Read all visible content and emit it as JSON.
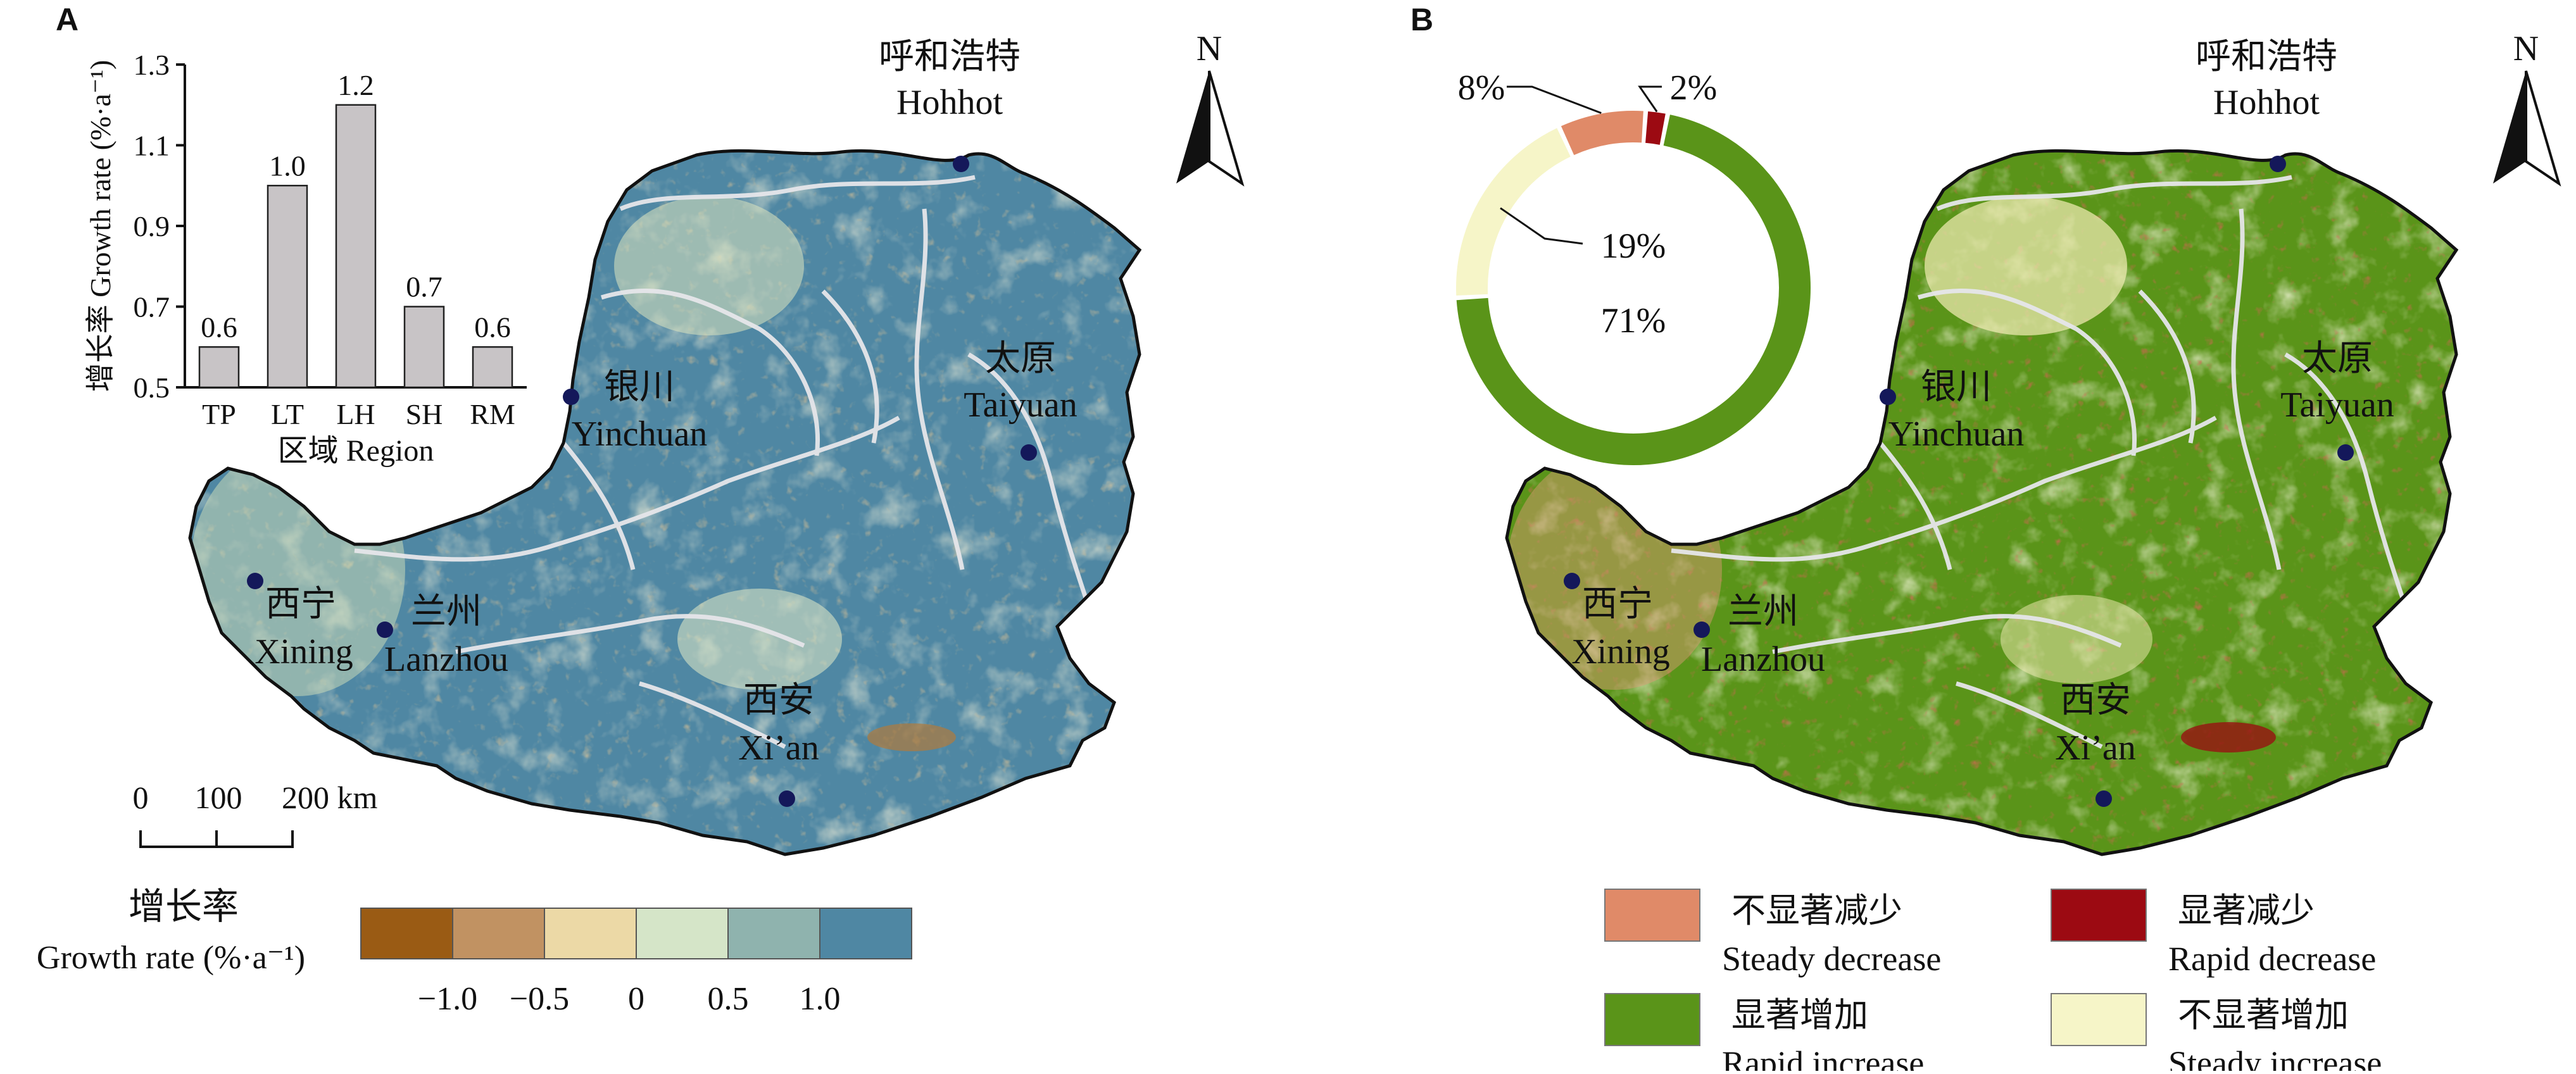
{
  "panel_a": {
    "label": "A",
    "cities": [
      {
        "name_cn": "呼和浩特",
        "name_en": "Hohhot"
      },
      {
        "name_cn": "银川",
        "name_en": "Yinchuan"
      },
      {
        "name_cn": "太原",
        "name_en": "Taiyuan"
      },
      {
        "name_cn": "西宁",
        "name_en": "Xining"
      },
      {
        "name_cn": "兰州",
        "name_en": "Lanzhou"
      },
      {
        "name_cn": "西安",
        "name_en": "Xi’an"
      }
    ],
    "north_label": "N",
    "scale_bar": {
      "ticks": [
        "0",
        "100",
        "200 km"
      ]
    },
    "legend": {
      "title_cn": "增长率",
      "title_en": "Growth rate (%·a⁻¹)",
      "colors": [
        "#9a5b14",
        "#c19262",
        "#ecd9a6",
        "#d5e5c8",
        "#8fb3ae",
        "#4f87a3"
      ],
      "tick_labels": [
        "−1.0",
        "−0.5",
        "0",
        "0.5",
        "1.0"
      ]
    }
  },
  "panel_b": {
    "label": "B",
    "cities": [
      {
        "name_cn": "呼和浩特",
        "name_en": "Hohhot"
      },
      {
        "name_cn": "银川",
        "name_en": "Yinchuan"
      },
      {
        "name_cn": "太原",
        "name_en": "Taiyuan"
      },
      {
        "name_cn": "西宁",
        "name_en": "Xining"
      },
      {
        "name_cn": "兰州",
        "name_en": "Lanzhou"
      },
      {
        "name_cn": "西安",
        "name_en": "Xi’an"
      }
    ],
    "north_label": "N",
    "legend": [
      {
        "cn": "不显著减少",
        "en": "Steady decrease",
        "color": "#e08a68"
      },
      {
        "cn": "显著减少",
        "en": "Rapid decrease",
        "color": "#9c0a12"
      },
      {
        "cn": "显著增加",
        "en": "Rapid increase",
        "color": "#5a9419"
      },
      {
        "cn": "不显著增加",
        "en": "Steady increase",
        "color": "#f6f5c8"
      }
    ]
  },
  "chart_data": [
    {
      "type": "bar",
      "title": "",
      "xlabel": "区域 Region",
      "ylabel": "增长率 Growth rate (%·a⁻¹)",
      "categories": [
        "TP",
        "LT",
        "LH",
        "SH",
        "RM"
      ],
      "values": [
        0.6,
        1.0,
        1.2,
        0.7,
        0.6
      ],
      "value_labels": [
        "0.6",
        "1.0",
        "1.2",
        "0.7",
        "0.6"
      ],
      "ylim": [
        0.5,
        1.3
      ],
      "yticks": [
        "0.5",
        "0.7",
        "0.9",
        "1.1",
        "1.3"
      ],
      "bar_color": "#c8c4c6"
    },
    {
      "type": "pie",
      "donut": true,
      "labels": [
        "Steady decrease",
        "Rapid decrease",
        "Rapid increase",
        "Steady increase"
      ],
      "values": [
        8,
        2,
        71,
        19
      ],
      "value_labels": [
        "8%",
        "2%",
        "71%",
        "19%"
      ],
      "colors": [
        "#e08a68",
        "#9c0a12",
        "#5a9419",
        "#f6f5c8"
      ]
    }
  ]
}
